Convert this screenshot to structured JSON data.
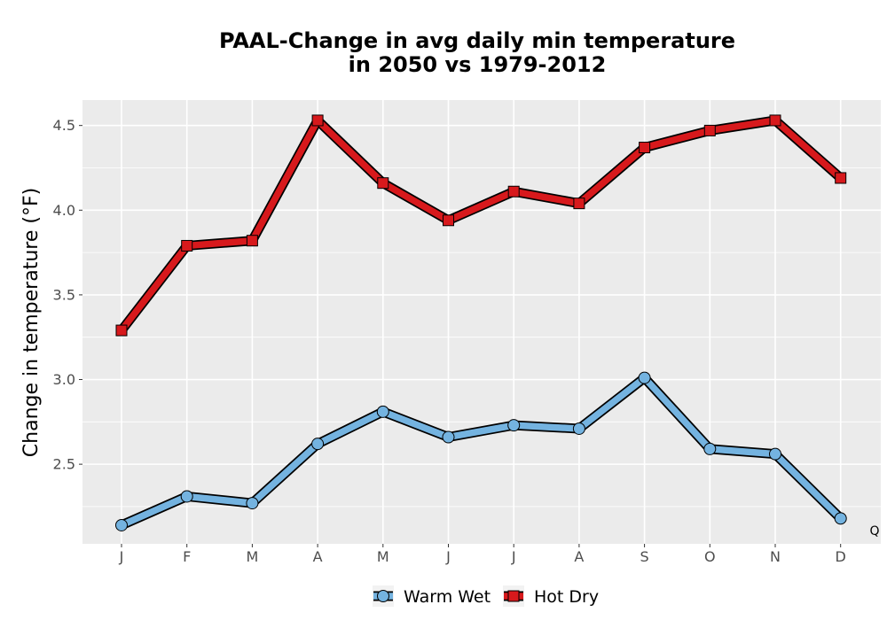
{
  "chart_data": {
    "type": "line",
    "title_line1": "PAAL-Change in avg daily min temperature",
    "title_line2": "in 2050 vs 1979-2012",
    "xlabel": "",
    "ylabel": "Change in temperature (°F)",
    "categories": [
      "J",
      "F",
      "M",
      "A",
      "M",
      "J",
      "J",
      "A",
      "S",
      "O",
      "N",
      "D"
    ],
    "ylim": [
      2.03,
      4.65
    ],
    "yticks": [
      2.5,
      3.0,
      3.5,
      4.0,
      4.5
    ],
    "ytick_labels": [
      "2.5",
      "3.0",
      "3.5",
      "4.0",
      "4.5"
    ],
    "grid": true,
    "legend_position": "bottom",
    "corner_note": "Q",
    "series": [
      {
        "name": "Warm Wet",
        "marker": "circle",
        "color": "#74b3e0",
        "values": [
          2.14,
          2.31,
          2.27,
          2.62,
          2.81,
          2.66,
          2.73,
          2.71,
          3.01,
          2.59,
          2.56,
          2.18
        ]
      },
      {
        "name": "Hot Dry",
        "marker": "square",
        "color": "#d7191c",
        "values": [
          3.29,
          3.79,
          3.82,
          4.53,
          4.16,
          3.94,
          4.11,
          4.04,
          4.37,
          4.47,
          4.53,
          4.19
        ]
      }
    ]
  }
}
